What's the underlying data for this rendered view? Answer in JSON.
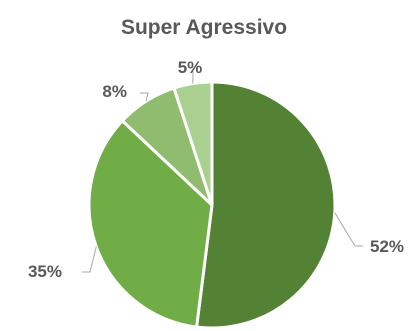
{
  "chart_data": {
    "type": "pie",
    "title": "Super Agressivo",
    "slices": [
      {
        "value": 52,
        "label": "52%",
        "color": "#548235"
      },
      {
        "value": 35,
        "label": "35%",
        "color": "#70ad47"
      },
      {
        "value": 8,
        "label": "8%",
        "color": "#8fbc6f"
      },
      {
        "value": 5,
        "label": "5%",
        "color": "#a9d08e"
      }
    ],
    "start_angle_deg": 0,
    "direction": "clockwise",
    "legend": "none"
  }
}
